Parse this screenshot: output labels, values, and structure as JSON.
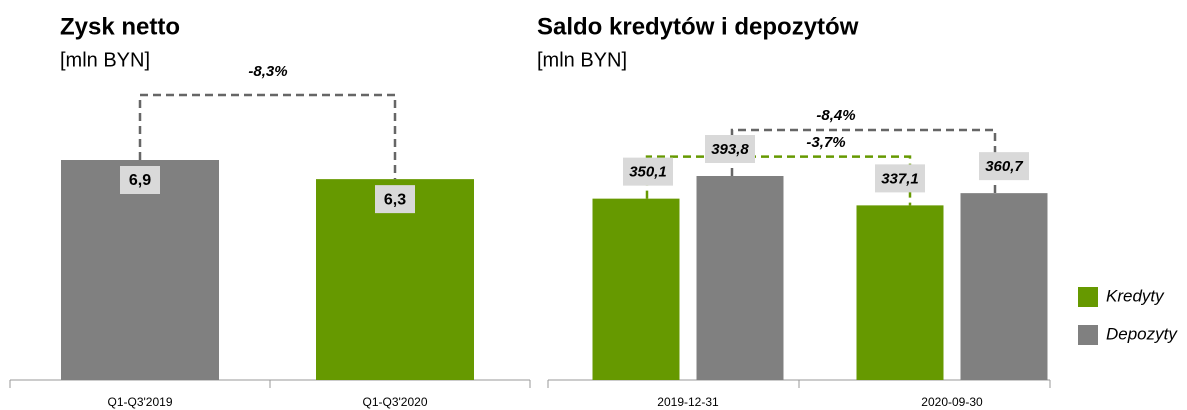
{
  "chart_data": [
    {
      "type": "bar",
      "title": "Zysk netto",
      "subtitle": "[mln BYN]",
      "categories": [
        "Q1-Q3'2019",
        "Q1-Q3'2020"
      ],
      "values": [
        6.9,
        6.3
      ],
      "value_labels": [
        "6,9",
        "6,3"
      ],
      "colors": [
        "#808080",
        "#669900"
      ],
      "annotations": [
        "-8,3%"
      ]
    },
    {
      "type": "grouped_bar",
      "title": "Saldo kredytów i depozytów",
      "subtitle": "[mln BYN]",
      "categories": [
        "2019-12-31",
        "2020-09-30"
      ],
      "series": [
        {
          "name": "Kredyty",
          "color": "#669900",
          "values": [
            350.1,
            337.1
          ],
          "value_labels": [
            "350,1",
            "337,1"
          ]
        },
        {
          "name": "Depozyty",
          "color": "#808080",
          "values": [
            393.8,
            360.7
          ],
          "value_labels": [
            "393,8",
            "360,7"
          ]
        }
      ],
      "annotations": [
        "-8,4%",
        "-3,7%"
      ],
      "legend": "right"
    }
  ]
}
